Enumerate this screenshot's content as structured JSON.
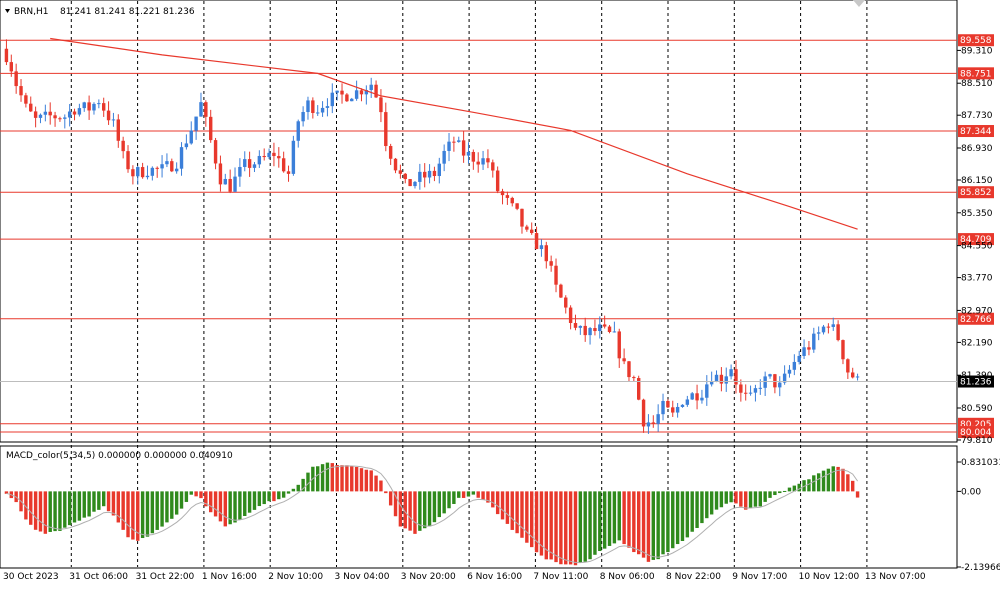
{
  "header": {
    "chart_label": "BRN,H1",
    "ohlc": "81.241 81.241 81.221 81.236"
  },
  "macd_header": {
    "label": "MACD_color(5,34,5) 0.000000 0.000000 0.040910"
  },
  "colors": {
    "bull_candle": "#3b7fd9",
    "bear_candle": "#e8382c",
    "level_line": "#e8382c",
    "ma_line": "#e8382c",
    "macd_up": "#2f8a1c",
    "macd_down": "#e8382c",
    "signal_line": "#b0b0b0",
    "grid_vertical": "#000000",
    "current_price_tag": "#000000"
  },
  "chart_data": [
    {
      "type": "candlestick",
      "title": "BRN,H1",
      "ylim": [
        79.81,
        90.1
      ],
      "y_ticks": [
        "89.310",
        "88.510",
        "87.730",
        "86.930",
        "86.150",
        "85.350",
        "84.550",
        "83.770",
        "82.970",
        "82.190",
        "81.390",
        "80.590",
        "79.810"
      ],
      "x_ticks": [
        "30 Oct 2023",
        "31 Oct 06:00",
        "31 Oct 22:00",
        "1 Nov 16:00",
        "2 Nov 10:00",
        "3 Nov 04:00",
        "3 Nov 20:00",
        "6 Nov 16:00",
        "7 Nov 11:00",
        "8 Nov 06:00",
        "8 Nov 22:00",
        "9 Nov 17:00",
        "10 Nov 12:00",
        "13 Nov 07:00"
      ],
      "levels": [
        "89.558",
        "88.751",
        "87.344",
        "85.852",
        "84.709",
        "82.766",
        "80.205",
        "80.004"
      ],
      "current_price": "81.236",
      "ma_series": [
        {
          "x": 9,
          "y": 89.6
        },
        {
          "x": 32,
          "y": 89.2
        },
        {
          "x": 64,
          "y": 88.75
        },
        {
          "x": 77,
          "y": 88.2
        },
        {
          "x": 96,
          "y": 87.8
        },
        {
          "x": 116,
          "y": 87.36
        },
        {
          "x": 140,
          "y": 86.3
        },
        {
          "x": 161,
          "y": 85.5
        },
        {
          "x": 175,
          "y": 84.95
        }
      ],
      "trend": [
        {
          "x": 0,
          "y": 89.2
        },
        {
          "x": 1,
          "y": 88.9
        },
        {
          "x": 2,
          "y": 88.5
        },
        {
          "x": 4,
          "y": 87.9
        },
        {
          "x": 6,
          "y": 87.6
        },
        {
          "x": 9,
          "y": 87.7
        },
        {
          "x": 12,
          "y": 87.7
        },
        {
          "x": 14,
          "y": 87.9
        },
        {
          "x": 17,
          "y": 87.9
        },
        {
          "x": 19,
          "y": 88.1
        },
        {
          "x": 22,
          "y": 87.5
        },
        {
          "x": 24,
          "y": 86.7
        },
        {
          "x": 26,
          "y": 86.3
        },
        {
          "x": 29,
          "y": 86.4
        },
        {
          "x": 32,
          "y": 86.4
        },
        {
          "x": 35,
          "y": 86.6
        },
        {
          "x": 38,
          "y": 87.4
        },
        {
          "x": 40,
          "y": 88.0
        },
        {
          "x": 42,
          "y": 87.1
        },
        {
          "x": 44,
          "y": 86.2
        },
        {
          "x": 46,
          "y": 86.0
        },
        {
          "x": 49,
          "y": 86.5
        },
        {
          "x": 52,
          "y": 86.6
        },
        {
          "x": 55,
          "y": 86.8
        },
        {
          "x": 58,
          "y": 86.3
        },
        {
          "x": 60,
          "y": 87.6
        },
        {
          "x": 62,
          "y": 88.0
        },
        {
          "x": 64,
          "y": 87.9
        },
        {
          "x": 66,
          "y": 88.1
        },
        {
          "x": 69,
          "y": 88.2
        },
        {
          "x": 72,
          "y": 88.3
        },
        {
          "x": 75,
          "y": 88.5
        },
        {
          "x": 77,
          "y": 87.9
        },
        {
          "x": 78,
          "y": 87.1
        },
        {
          "x": 80,
          "y": 86.5
        },
        {
          "x": 82,
          "y": 86.0
        },
        {
          "x": 85,
          "y": 86.2
        },
        {
          "x": 88,
          "y": 86.3
        },
        {
          "x": 90,
          "y": 86.8
        },
        {
          "x": 92,
          "y": 87.1
        },
        {
          "x": 94,
          "y": 86.8
        },
        {
          "x": 96,
          "y": 86.7
        },
        {
          "x": 99,
          "y": 86.6
        },
        {
          "x": 101,
          "y": 85.9
        },
        {
          "x": 103,
          "y": 85.6
        },
        {
          "x": 105,
          "y": 85.3
        },
        {
          "x": 107,
          "y": 84.8
        },
        {
          "x": 109,
          "y": 84.6
        },
        {
          "x": 111,
          "y": 84.3
        },
        {
          "x": 113,
          "y": 83.5
        },
        {
          "x": 115,
          "y": 83.0
        },
        {
          "x": 117,
          "y": 82.5
        },
        {
          "x": 119,
          "y": 82.4
        },
        {
          "x": 122,
          "y": 82.5
        },
        {
          "x": 125,
          "y": 82.3
        },
        {
          "x": 127,
          "y": 81.6
        },
        {
          "x": 129,
          "y": 81.3
        },
        {
          "x": 131,
          "y": 80.3
        },
        {
          "x": 133,
          "y": 80.2
        },
        {
          "x": 135,
          "y": 80.6
        },
        {
          "x": 137,
          "y": 80.4
        },
        {
          "x": 139,
          "y": 80.8
        },
        {
          "x": 141,
          "y": 80.9
        },
        {
          "x": 143,
          "y": 81.0
        },
        {
          "x": 145,
          "y": 81.4
        },
        {
          "x": 147,
          "y": 81.3
        },
        {
          "x": 149,
          "y": 81.6
        },
        {
          "x": 151,
          "y": 80.9
        },
        {
          "x": 153,
          "y": 80.8
        },
        {
          "x": 155,
          "y": 81.2
        },
        {
          "x": 157,
          "y": 81.3
        },
        {
          "x": 159,
          "y": 81.1
        },
        {
          "x": 161,
          "y": 81.5
        },
        {
          "x": 163,
          "y": 81.9
        },
        {
          "x": 165,
          "y": 82.1
        },
        {
          "x": 167,
          "y": 82.4
        },
        {
          "x": 169,
          "y": 82.7
        },
        {
          "x": 171,
          "y": 82.3
        },
        {
          "x": 173,
          "y": 81.5
        },
        {
          "x": 175,
          "y": 81.24
        }
      ]
    },
    {
      "type": "bar",
      "title": "MACD_color(5,34,5) 0.000000 0.000000 0.040910",
      "ylim": [
        -2.13966,
        0.831031
      ],
      "y_ticks": [
        "0.831031",
        "0.00",
        "-2.13966"
      ],
      "histogram": [
        {
          "x": 0,
          "y": -0.05
        },
        {
          "x": 2,
          "y": -0.3
        },
        {
          "x": 4,
          "y": -0.8
        },
        {
          "x": 6,
          "y": -1.1
        },
        {
          "x": 8,
          "y": -1.2
        },
        {
          "x": 11,
          "y": -1.1
        },
        {
          "x": 14,
          "y": -0.9
        },
        {
          "x": 17,
          "y": -0.7
        },
        {
          "x": 20,
          "y": -0.4
        },
        {
          "x": 22,
          "y": -0.7
        },
        {
          "x": 25,
          "y": -1.3
        },
        {
          "x": 27,
          "y": -1.4
        },
        {
          "x": 30,
          "y": -1.2
        },
        {
          "x": 33,
          "y": -0.9
        },
        {
          "x": 36,
          "y": -0.5
        },
        {
          "x": 38,
          "y": -0.1
        },
        {
          "x": 40,
          "y": -0.2
        },
        {
          "x": 42,
          "y": -0.6
        },
        {
          "x": 45,
          "y": -1.0
        },
        {
          "x": 48,
          "y": -0.8
        },
        {
          "x": 51,
          "y": -0.5
        },
        {
          "x": 54,
          "y": -0.3
        },
        {
          "x": 57,
          "y": -0.2
        },
        {
          "x": 60,
          "y": 0.2
        },
        {
          "x": 63,
          "y": 0.7
        },
        {
          "x": 66,
          "y": 0.8
        },
        {
          "x": 69,
          "y": 0.75
        },
        {
          "x": 72,
          "y": 0.7
        },
        {
          "x": 75,
          "y": 0.6
        },
        {
          "x": 77,
          "y": 0.3
        },
        {
          "x": 79,
          "y": -0.4
        },
        {
          "x": 81,
          "y": -1.0
        },
        {
          "x": 84,
          "y": -1.2
        },
        {
          "x": 87,
          "y": -1.0
        },
        {
          "x": 90,
          "y": -0.6
        },
        {
          "x": 93,
          "y": -0.2
        },
        {
          "x": 96,
          "y": -0.1
        },
        {
          "x": 99,
          "y": -0.3
        },
        {
          "x": 102,
          "y": -0.8
        },
        {
          "x": 105,
          "y": -1.2
        },
        {
          "x": 108,
          "y": -1.6
        },
        {
          "x": 111,
          "y": -1.9
        },
        {
          "x": 114,
          "y": -2.05
        },
        {
          "x": 117,
          "y": -2.1
        },
        {
          "x": 120,
          "y": -1.9
        },
        {
          "x": 123,
          "y": -1.6
        },
        {
          "x": 126,
          "y": -1.4
        },
        {
          "x": 129,
          "y": -1.7
        },
        {
          "x": 132,
          "y": -2.0
        },
        {
          "x": 134,
          "y": -1.9
        },
        {
          "x": 137,
          "y": -1.6
        },
        {
          "x": 140,
          "y": -1.3
        },
        {
          "x": 143,
          "y": -0.9
        },
        {
          "x": 146,
          "y": -0.5
        },
        {
          "x": 149,
          "y": -0.3
        },
        {
          "x": 152,
          "y": -0.5
        },
        {
          "x": 155,
          "y": -0.4
        },
        {
          "x": 158,
          "y": -0.1
        },
        {
          "x": 161,
          "y": 0.1
        },
        {
          "x": 164,
          "y": 0.3
        },
        {
          "x": 167,
          "y": 0.5
        },
        {
          "x": 170,
          "y": 0.7
        },
        {
          "x": 172,
          "y": 0.65
        },
        {
          "x": 174,
          "y": 0.3
        },
        {
          "x": 175,
          "y": -0.15
        }
      ]
    }
  ]
}
